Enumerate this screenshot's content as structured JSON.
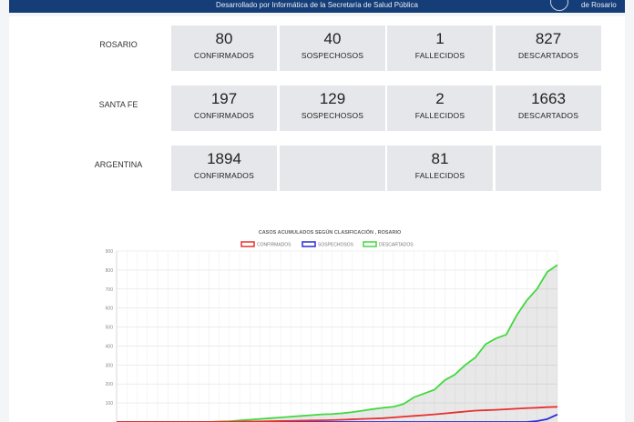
{
  "header": {
    "subtitle": "Desarrollado por Informática de la Secretaría de Salud Pública",
    "brand": "de Rosario"
  },
  "stats": [
    {
      "region": "ROSARIO",
      "cards": [
        {
          "value": "80",
          "label": "CONFIRMADOS"
        },
        {
          "value": "40",
          "label": "SOSPECHOSOS"
        },
        {
          "value": "1",
          "label": "FALLECIDOS"
        },
        {
          "value": "827",
          "label": "DESCARTADOS"
        }
      ]
    },
    {
      "region": "SANTA FE",
      "cards": [
        {
          "value": "197",
          "label": "CONFIRMADOS"
        },
        {
          "value": "129",
          "label": "SOSPECHOSOS"
        },
        {
          "value": "2",
          "label": "FALLECIDOS"
        },
        {
          "value": "1663",
          "label": "DESCARTADOS"
        }
      ]
    },
    {
      "region": "ARGENTINA",
      "cards": [
        {
          "value": "1894",
          "label": "CONFIRMADOS"
        },
        {
          "value": "",
          "label": ""
        },
        {
          "value": "81",
          "label": "FALLECIDOS"
        },
        {
          "value": "",
          "label": ""
        }
      ]
    }
  ],
  "chart_data": {
    "type": "line",
    "title": "CASOS ACUMULADOS SEGÚN CLASIFICACIÓN , ROSARIO",
    "legend_position": "top",
    "grid": true,
    "ylim": [
      0,
      900
    ],
    "yticks": [
      "900",
      "800",
      "700",
      "600",
      "500",
      "400",
      "300",
      "200",
      "100"
    ],
    "x_count": 44,
    "series": [
      {
        "name": "CONFIRMADOS",
        "color": "#e8302f",
        "fill": false,
        "values": [
          0,
          0,
          0,
          0,
          0,
          0,
          0,
          0,
          0,
          0,
          1,
          1,
          2,
          2,
          3,
          4,
          5,
          6,
          7,
          8,
          9,
          10,
          12,
          14,
          16,
          18,
          20,
          24,
          28,
          32,
          36,
          40,
          45,
          50,
          55,
          60,
          62,
          64,
          67,
          70,
          73,
          75,
          78,
          80
        ]
      },
      {
        "name": "SOSPECHOSOS",
        "color": "#2b2bd6",
        "fill": false,
        "values": [
          0,
          0,
          0,
          0,
          0,
          0,
          0,
          0,
          0,
          0,
          0,
          0,
          0,
          0,
          0,
          0,
          0,
          0,
          0,
          0,
          0,
          0,
          0,
          0,
          0,
          0,
          0,
          0,
          0,
          0,
          0,
          0,
          0,
          0,
          0,
          0,
          0,
          0,
          0,
          0,
          0,
          5,
          15,
          40
        ]
      },
      {
        "name": "DESCARTADOS",
        "color": "#41d93f",
        "fill": true,
        "values": [
          0,
          0,
          0,
          0,
          0,
          0,
          0,
          0,
          0,
          0,
          2,
          4,
          8,
          12,
          16,
          20,
          24,
          28,
          32,
          36,
          40,
          42,
          46,
          52,
          60,
          68,
          75,
          80,
          95,
          130,
          150,
          170,
          220,
          250,
          300,
          340,
          410,
          440,
          460,
          560,
          640,
          700,
          790,
          827
        ]
      }
    ]
  }
}
